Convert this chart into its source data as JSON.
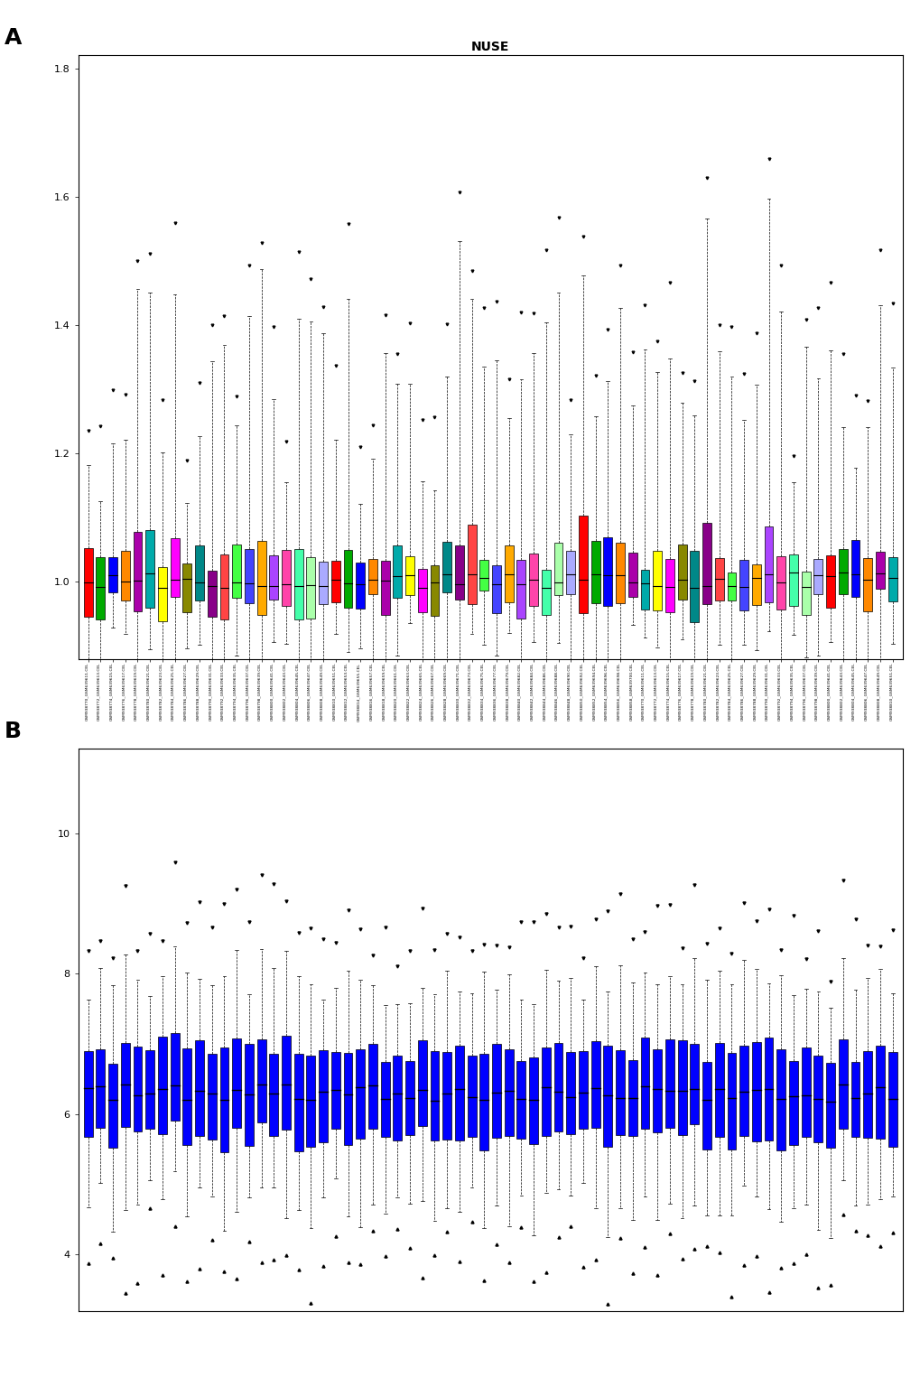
{
  "n_samples": 66,
  "title_a": "NUSE",
  "panel_a_label": "A",
  "panel_b_label": "B",
  "ylim_a": [
    0.88,
    1.82
  ],
  "yticks_a": [
    1.0,
    1.2,
    1.4,
    1.6,
    1.8
  ],
  "ylim_b": [
    3.2,
    11.2
  ],
  "yticks_b": [
    4.0,
    6.0,
    8.0,
    10.0
  ],
  "box_color_b": "#0000FF",
  "median_color_b": "#000000",
  "background_color": "#FFFFFF",
  "color_list": [
    "#FF0000",
    "#00AA00",
    "#0000FF",
    "#FF8800",
    "#AA00AA",
    "#00AAAA",
    "#FFFF00",
    "#FF00FF",
    "#888800",
    "#008888",
    "#880088",
    "#FF4444",
    "#44FF44",
    "#4444FF",
    "#FFAA00",
    "#AA44FF",
    "#FF44AA",
    "#44FFAA",
    "#AAFFAA",
    "#AAAAFF"
  ]
}
